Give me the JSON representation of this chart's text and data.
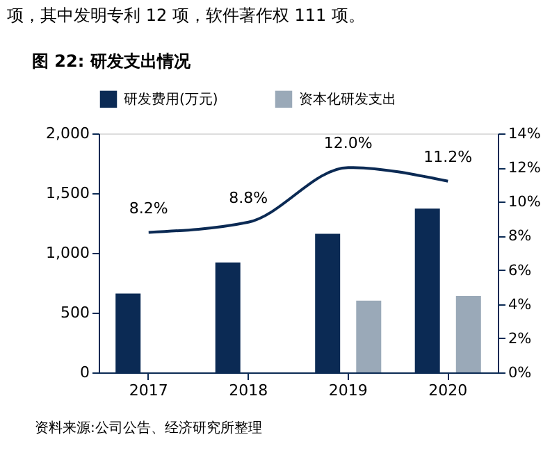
{
  "chart_data": {
    "type": "bar",
    "title": "图 22: 研发支出情况",
    "categories": [
      "2017",
      "2018",
      "2019",
      "2020"
    ],
    "series": [
      {
        "name": "研发费用(万元)",
        "color": "#0b2a54",
        "values": [
          660,
          920,
          1160,
          1370
        ]
      },
      {
        "name": "资本化研发支出",
        "color": "#9aa9b8",
        "values": [
          null,
          null,
          600,
          640
        ]
      },
      {
        "type": "line",
        "axis": "y2",
        "color": "#0b2a54",
        "values": [
          8.2,
          8.8,
          12.0,
          11.2
        ],
        "value_labels": [
          "8.2%",
          "8.8%",
          "12.0%",
          "11.2%"
        ]
      }
    ],
    "ylim": [
      0,
      2000
    ],
    "yticks": [
      0,
      500,
      {
        "value": 1000,
        "label": "1,000"
      },
      {
        "value": 1500,
        "label": "1,500"
      },
      {
        "value": 2000,
        "label": "2,000"
      }
    ],
    "y2lim": [
      0,
      14
    ],
    "y2ticks": [
      {
        "value": 0,
        "label": "0%"
      },
      {
        "value": 2,
        "label": "2%"
      },
      {
        "value": 4,
        "label": "4%"
      },
      {
        "value": 6,
        "label": "6%"
      },
      {
        "value": 8,
        "label": "8%"
      },
      {
        "value": 10,
        "label": "10%"
      },
      {
        "value": 12,
        "label": "12%"
      },
      {
        "value": 14,
        "label": "14%"
      }
    ],
    "legend": "top",
    "grid": false,
    "annotations": [
      "项，其中发明专利 12 项，软件著作权 111 项。",
      "资料来源:公司公告、经济研究所整理"
    ]
  }
}
